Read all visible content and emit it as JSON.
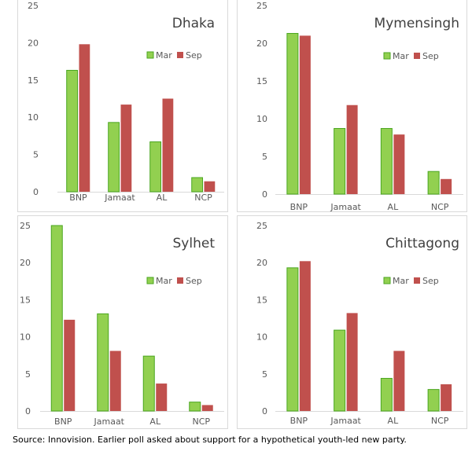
{
  "colors": {
    "mar": "#92d050",
    "mar_edge": "#4aa61f",
    "sep": "#c0504d",
    "axis_text": "#595959",
    "grid": "#d9d9d9"
  },
  "chart_data": [
    {
      "type": "bar",
      "title": "Dhaka",
      "categories": [
        "BNP",
        "Jamaat",
        "AL",
        "NCP"
      ],
      "series": [
        {
          "name": "Mar",
          "values": [
            16.3,
            9.3,
            6.7,
            1.9
          ]
        },
        {
          "name": "Sep",
          "values": [
            19.8,
            11.7,
            12.5,
            1.4
          ]
        }
      ],
      "ylim": [
        0,
        25
      ],
      "yticks": [
        "0",
        "5",
        "10",
        "15",
        "20",
        "25"
      ],
      "xlabel": "",
      "ylabel": "",
      "grid": false,
      "legend": "top-right"
    },
    {
      "type": "bar",
      "title": "Mymensingh",
      "categories": [
        "BNP",
        "Jamaat",
        "AL",
        "NCP"
      ],
      "series": [
        {
          "name": "Mar",
          "values": [
            21.3,
            8.7,
            8.7,
            3.0
          ]
        },
        {
          "name": "Sep",
          "values": [
            21.0,
            11.8,
            7.9,
            2.0
          ]
        }
      ],
      "ylim": [
        0,
        25
      ],
      "yticks": [
        "0",
        "5",
        "10",
        "15",
        "20",
        "25"
      ],
      "xlabel": "",
      "ylabel": "",
      "grid": false,
      "legend": "top-right"
    },
    {
      "type": "bar",
      "title": "Sylhet",
      "categories": [
        "BNP",
        "Jamaat",
        "AL",
        "NCP"
      ],
      "series": [
        {
          "name": "Mar",
          "values": [
            25.0,
            13.1,
            7.4,
            1.2
          ]
        },
        {
          "name": "Sep",
          "values": [
            12.3,
            8.1,
            3.7,
            0.8
          ]
        }
      ],
      "ylim": [
        0,
        25
      ],
      "yticks": [
        "0",
        "5",
        "10",
        "15",
        "20",
        "25"
      ],
      "xlabel": "",
      "ylabel": "",
      "grid": false,
      "legend": "top-right"
    },
    {
      "type": "bar",
      "title": "Chittagong",
      "categories": [
        "BNP",
        "Jamaat",
        "AL",
        "NCP"
      ],
      "series": [
        {
          "name": "Mar",
          "values": [
            19.3,
            10.9,
            4.4,
            2.9
          ]
        },
        {
          "name": "Sep",
          "values": [
            20.2,
            13.2,
            8.1,
            3.6
          ]
        }
      ],
      "ylim": [
        0,
        25
      ],
      "yticks": [
        "0",
        "5",
        "10",
        "15",
        "20",
        "25"
      ],
      "xlabel": "",
      "ylabel": "",
      "grid": false,
      "legend": "top-right"
    }
  ],
  "source_note": "Source: Innovision. Earlier poll asked about support for a hypothetical youth-led new party."
}
